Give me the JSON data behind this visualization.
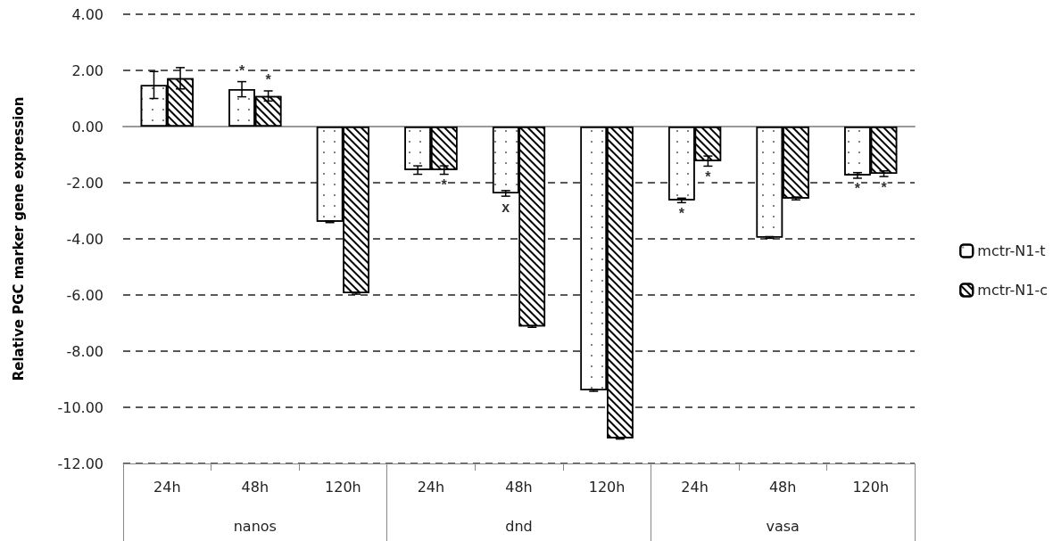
{
  "chart_data": {
    "type": "bar",
    "ylabel": "Relative PGC marker gene expression",
    "categories": [
      "24h",
      "48h",
      "120h",
      "24h",
      "48h",
      "120h",
      "24h",
      "48h",
      "120h"
    ],
    "annotations": [
      "nanos",
      "dnd",
      "vasa"
    ],
    "series": [
      {
        "name": "mctr-N1-t",
        "color": "#ffffff",
        "values": [
          1.48,
          1.33,
          -3.39,
          -1.55,
          -2.38,
          -9.4,
          -2.63,
          -3.95,
          -1.74
        ],
        "errors": [
          0.48,
          0.27,
          0.03,
          0.15,
          0.1,
          0.03,
          0.08,
          0.03,
          0.1
        ],
        "value_labels": [
          null,
          "*",
          null,
          null,
          "x",
          null,
          "*",
          null,
          "*"
        ]
      },
      {
        "name": "mctr-N1-c",
        "color": "#ffffff",
        "values": [
          1.72,
          1.09,
          -5.94,
          -1.55,
          -7.12,
          -11.1,
          -1.23,
          -2.56,
          -1.68
        ],
        "errors": [
          0.38,
          0.18,
          0.03,
          0.15,
          0.03,
          0.03,
          0.18,
          0.05,
          0.1
        ],
        "value_labels": [
          null,
          "*",
          null,
          "*",
          null,
          null,
          "*",
          null,
          "*"
        ]
      }
    ],
    "ylim": [
      -12,
      4
    ],
    "yticks": [
      {
        "value": -12,
        "label": "-12.00"
      },
      {
        "value": -10,
        "label": "-10.00"
      },
      {
        "value": -8,
        "label": "-8.00"
      },
      {
        "value": -6,
        "label": "-6.00"
      },
      {
        "value": -4,
        "label": "-4.00"
      },
      {
        "value": -2,
        "label": "-2.00"
      },
      {
        "value": 0,
        "label": "0.00"
      },
      {
        "value": 2,
        "label": "2.00"
      },
      {
        "value": 4,
        "label": "4.00"
      }
    ],
    "grid": "y",
    "legend": "right"
  }
}
